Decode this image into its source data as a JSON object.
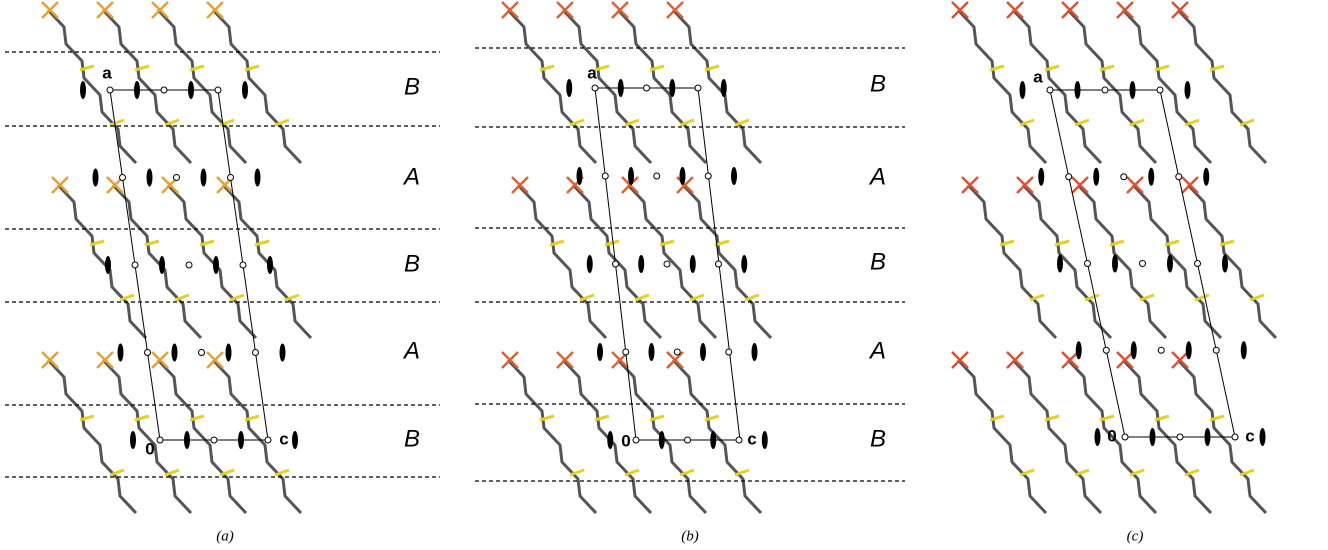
{
  "panels": [
    {
      "caption": "(a)",
      "layer_labels": [
        "B",
        "A",
        "B",
        "A",
        "B"
      ],
      "cell_labels": [
        "a",
        "0",
        "c"
      ]
    },
    {
      "caption": "(b)",
      "layer_labels": [
        "B",
        "A",
        "B",
        "A",
        "B"
      ],
      "cell_labels": [
        "a",
        "0",
        "c"
      ]
    },
    {
      "caption": "(c)",
      "cell_labels": [
        "a",
        "0",
        "c"
      ]
    }
  ]
}
